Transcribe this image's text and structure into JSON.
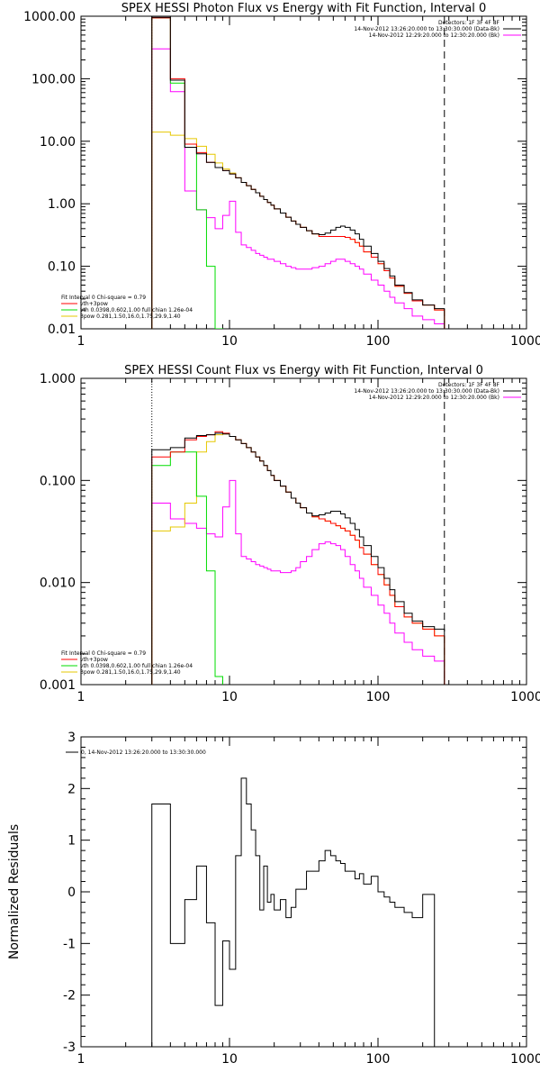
{
  "chart_data": [
    {
      "type": "line",
      "title": "SPEX HESSI Photon Flux vs Energy with Fit Function, Interval 0",
      "xscale": "log",
      "yscale": "log",
      "xlim": [
        1,
        1000
      ],
      "ylim": [
        0.01,
        1000
      ],
      "xticks": [
        "1",
        "10",
        "100",
        "1000"
      ],
      "yticks": [
        "0.01",
        "0.10",
        "1.00",
        "10.00",
        "100.00",
        "1000.00"
      ],
      "xlabel": "",
      "ylabel": "",
      "vlines": [
        {
          "x": 3,
          "style": "dotted"
        },
        {
          "x": 280,
          "style": "dashed"
        }
      ],
      "header_lines": [
        "Detectors: 1F 3F 4F 8F",
        "14-Nov-2012 13:26:20.000 to 13:30:30.000 (Data-Bk)",
        "14-Nov-2012 12:29:20.000 to 12:30:20.000 (Bk)"
      ],
      "header_colors": [
        "#000000",
        "#000000",
        "#ff00ff"
      ],
      "legend_lines": [
        "Fit Interval 0   Chi-square = 0.79",
        "vth+3pow",
        "vth 0.0398,0.602,1.00  full chian 1.26e-04",
        "3pow 0.281,1.50,16.0,1.75,29.9,1.40"
      ],
      "legend_colors": [
        "#000000",
        "#ff0000",
        "#00dd00",
        "#e6c800"
      ],
      "edges": [
        3,
        4,
        5,
        6,
        7,
        8,
        9,
        10,
        11,
        12,
        13,
        14,
        15,
        16,
        17,
        18,
        19,
        20,
        22,
        24,
        26,
        28,
        30,
        33,
        36,
        40,
        44,
        48,
        52,
        56,
        60,
        65,
        70,
        75,
        80,
        90,
        100,
        110,
        120,
        130,
        150,
        170,
        200,
        240,
        280
      ],
      "series": [
        {
          "color": "#000000",
          "values": [
            960,
            95,
            8,
            6.3,
            4.6,
            3.8,
            3.4,
            3.0,
            2.6,
            2.2,
            1.95,
            1.7,
            1.5,
            1.32,
            1.17,
            1.05,
            0.95,
            0.83,
            0.71,
            0.61,
            0.53,
            0.47,
            0.42,
            0.37,
            0.33,
            0.32,
            0.34,
            0.38,
            0.42,
            0.44,
            0.42,
            0.38,
            0.33,
            0.27,
            0.21,
            0.16,
            0.12,
            0.092,
            0.07,
            0.05,
            0.038,
            0.029,
            0.024,
            0.021
          ]
        },
        {
          "color": "#ff0000",
          "values": [
            940,
            100,
            9,
            6.6,
            4.6,
            3.8,
            3.4,
            3.0,
            2.6,
            2.2,
            1.95,
            1.7,
            1.5,
            1.32,
            1.17,
            1.05,
            0.95,
            0.83,
            0.71,
            0.61,
            0.53,
            0.47,
            0.42,
            0.37,
            0.33,
            0.3,
            0.3,
            0.3,
            0.3,
            0.3,
            0.29,
            0.27,
            0.24,
            0.21,
            0.17,
            0.14,
            0.11,
            0.085,
            0.065,
            0.048,
            0.037,
            0.028,
            0.024,
            0.02
          ]
        },
        {
          "color": "#00dd00",
          "values": [
            940,
            85,
            8,
            0.8,
            0.1,
            0.01
          ]
        },
        {
          "color": "#e6c800",
          "values": [
            14,
            12.5,
            11,
            8.3,
            6.2,
            4.5,
            3.6,
            3.1,
            2.6,
            2.2,
            1.95,
            1.7,
            1.5,
            1.32,
            1.17,
            1.05,
            0.95,
            0.83,
            0.71,
            0.61,
            0.53,
            0.47,
            0.42,
            0.37,
            0.33,
            0.3,
            0.3,
            0.3,
            0.3,
            0.3,
            0.29,
            0.27,
            0.24,
            0.21,
            0.17,
            0.14,
            0.11,
            0.085,
            0.065,
            0.048,
            0.037,
            0.028,
            0.024,
            0.02
          ]
        },
        {
          "color": "#ff00ff",
          "values": [
            300,
            62,
            1.6,
            0.8,
            0.6,
            0.4,
            0.65,
            1.1,
            0.35,
            0.22,
            0.2,
            0.18,
            0.16,
            0.15,
            0.14,
            0.13,
            0.13,
            0.12,
            0.11,
            0.1,
            0.095,
            0.09,
            0.09,
            0.09,
            0.095,
            0.1,
            0.11,
            0.12,
            0.13,
            0.13,
            0.12,
            0.11,
            0.1,
            0.09,
            0.075,
            0.06,
            0.05,
            0.04,
            0.032,
            0.026,
            0.021,
            0.016,
            0.014,
            0.012
          ]
        }
      ]
    },
    {
      "type": "line",
      "title": "SPEX HESSI Count Flux vs Energy with Fit Function, Interval 0",
      "xscale": "log",
      "yscale": "log",
      "xlim": [
        1,
        1000
      ],
      "ylim": [
        0.001,
        1
      ],
      "xticks": [
        "1",
        "10",
        "100",
        "1000"
      ],
      "yticks": [
        "0.001",
        "0.010",
        "0.100",
        "1.000"
      ],
      "xlabel": "",
      "ylabel": "",
      "vlines": [
        {
          "x": 3,
          "style": "dotted"
        },
        {
          "x": 280,
          "style": "dashed"
        }
      ],
      "header_lines": [
        "Detectors: 1F 3F 4F 8F",
        "14-Nov-2012 13:26:20.000 to 13:30:30.000 (Data-Bk)",
        "14-Nov-2012 12:29:20.000 to 12:30:20.000 (Bk)"
      ],
      "header_colors": [
        "#000000",
        "#000000",
        "#ff00ff"
      ],
      "legend_lines": [
        "Fit Interval 0   Chi-square = 0.79",
        "vth+3pow",
        "vth 0.0398,0.602,1.00  full chian 1.26e-04",
        "3pow 0.281,1.50,16.0,1.75,29.9,1.40"
      ],
      "legend_colors": [
        "#000000",
        "#ff0000",
        "#00dd00",
        "#e6c800"
      ],
      "edges": [
        3,
        4,
        5,
        6,
        7,
        8,
        9,
        10,
        11,
        12,
        13,
        14,
        15,
        16,
        17,
        18,
        19,
        20,
        22,
        24,
        26,
        28,
        30,
        33,
        36,
        40,
        44,
        48,
        52,
        56,
        60,
        65,
        70,
        75,
        80,
        90,
        100,
        110,
        120,
        130,
        150,
        170,
        200,
        240,
        280
      ],
      "series": [
        {
          "color": "#000000",
          "values": [
            0.2,
            0.21,
            0.26,
            0.275,
            0.28,
            0.29,
            0.285,
            0.27,
            0.25,
            0.23,
            0.21,
            0.19,
            0.17,
            0.155,
            0.14,
            0.125,
            0.112,
            0.1,
            0.088,
            0.077,
            0.067,
            0.06,
            0.054,
            0.048,
            0.045,
            0.046,
            0.048,
            0.05,
            0.05,
            0.047,
            0.043,
            0.038,
            0.033,
            0.028,
            0.023,
            0.018,
            0.014,
            0.011,
            0.0085,
            0.0065,
            0.005,
            0.0042,
            0.0037,
            0.0035
          ]
        },
        {
          "color": "#ff0000",
          "values": [
            0.17,
            0.19,
            0.25,
            0.27,
            0.28,
            0.3,
            0.29,
            0.27,
            0.25,
            0.23,
            0.21,
            0.19,
            0.17,
            0.155,
            0.14,
            0.125,
            0.112,
            0.1,
            0.088,
            0.077,
            0.067,
            0.06,
            0.054,
            0.048,
            0.044,
            0.042,
            0.04,
            0.038,
            0.036,
            0.034,
            0.032,
            0.029,
            0.026,
            0.022,
            0.019,
            0.015,
            0.012,
            0.0095,
            0.0075,
            0.0058,
            0.0046,
            0.004,
            0.0035,
            0.003
          ]
        },
        {
          "color": "#00dd00",
          "values": [
            0.14,
            0.19,
            0.19,
            0.07,
            0.013,
            0.0012
          ]
        },
        {
          "color": "#e6c800",
          "values": [
            0.032,
            0.035,
            0.06,
            0.19,
            0.24,
            0.28,
            0.285,
            0.27,
            0.25,
            0.23,
            0.21,
            0.19,
            0.17,
            0.155,
            0.14,
            0.125,
            0.112,
            0.1,
            0.088,
            0.077,
            0.067,
            0.06,
            0.054,
            0.048,
            0.044,
            0.042,
            0.04,
            0.038,
            0.036,
            0.034,
            0.032,
            0.029,
            0.026,
            0.022,
            0.019,
            0.015,
            0.012,
            0.0095,
            0.0075,
            0.0058,
            0.0046,
            0.004,
            0.0035,
            0.003
          ]
        },
        {
          "color": "#ff00ff",
          "values": [
            0.06,
            0.042,
            0.038,
            0.034,
            0.03,
            0.028,
            0.055,
            0.1,
            0.03,
            0.018,
            0.017,
            0.016,
            0.015,
            0.0145,
            0.014,
            0.0135,
            0.013,
            0.013,
            0.0125,
            0.0125,
            0.013,
            0.014,
            0.016,
            0.018,
            0.021,
            0.024,
            0.025,
            0.024,
            0.023,
            0.021,
            0.018,
            0.015,
            0.013,
            0.011,
            0.009,
            0.0075,
            0.006,
            0.005,
            0.004,
            0.0032,
            0.0026,
            0.0022,
            0.0019,
            0.0017
          ]
        }
      ]
    },
    {
      "type": "line",
      "title": "",
      "xscale": "log",
      "yscale": "linear",
      "xlim": [
        1,
        1000
      ],
      "ylim": [
        -3,
        3
      ],
      "xticks": [
        "1",
        "10",
        "100",
        "1000"
      ],
      "yticks": [
        "-3",
        "-2",
        "-1",
        "0",
        "1",
        "2",
        "3"
      ],
      "xlabel": "",
      "ylabel": "Normalized Residuals",
      "legend_lines": [
        "0, 14-Nov-2012 13:26:20.000 to 13:30:30.000"
      ],
      "legend_colors": [
        "#000000"
      ],
      "edges": [
        3,
        4,
        5,
        6,
        7,
        8,
        9,
        10,
        11,
        12,
        13,
        14,
        15,
        16,
        17,
        18,
        19,
        20,
        22,
        24,
        26,
        28,
        30,
        33,
        36,
        40,
        44,
        48,
        52,
        56,
        60,
        65,
        70,
        75,
        80,
        90,
        100,
        110,
        120,
        130,
        150,
        170,
        200,
        240,
        280
      ],
      "series": [
        {
          "color": "#000000",
          "values": [
            1.7,
            -1.0,
            -0.15,
            0.5,
            -0.6,
            -2.2,
            -0.95,
            -1.5,
            0.7,
            2.2,
            1.7,
            1.2,
            0.7,
            -0.35,
            0.5,
            -0.2,
            -0.05,
            -0.35,
            -0.15,
            -0.5,
            -0.3,
            0.05,
            0.05,
            0.4,
            0.4,
            0.6,
            0.8,
            0.7,
            0.6,
            0.55,
            0.4,
            0.4,
            0.25,
            0.35,
            0.15,
            0.3,
            0.0,
            -0.1,
            -0.2,
            -0.3,
            -0.4,
            -0.5,
            -0.05,
            -3.0
          ]
        }
      ]
    }
  ]
}
